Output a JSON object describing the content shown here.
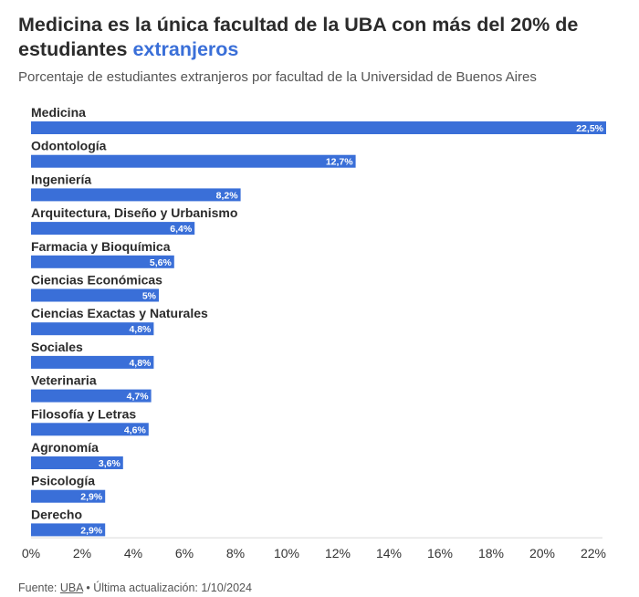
{
  "header": {
    "title_main": "Medicina es la única facultad de la UBA con más del 20% de estudiantes",
    "title_highlight": "extranjeros",
    "subtitle": "Porcentaje de estudiantes extranjeros por facultad de la Universidad de Buenos Aires"
  },
  "footer": {
    "source_label": "Fuente:",
    "source_link": "UBA",
    "separator": "•",
    "updated": "Última actualización: 1/10/2024"
  },
  "colors": {
    "bar": "#3a6fd8",
    "highlight": "#3a6fd8"
  },
  "chart_data": {
    "type": "bar",
    "orientation": "horizontal",
    "title": "Medicina es la única facultad de la UBA con más del 20% de estudiantes extranjeros",
    "subtitle": "Porcentaje de estudiantes extranjeros por facultad de la Universidad de Buenos Aires",
    "categories": [
      "Medicina",
      "Odontología",
      "Ingeniería",
      "Arquitectura, Diseño y Urbanismo",
      "Farmacia y Bioquímica",
      "Ciencias Económicas",
      "Ciencias Exactas y Naturales",
      "Sociales",
      "Veterinaria",
      "Filosofía y Letras",
      "Agronomía",
      "Psicología",
      "Derecho"
    ],
    "values": [
      22.5,
      12.7,
      8.2,
      6.4,
      5.6,
      5,
      4.8,
      4.8,
      4.7,
      4.6,
      3.6,
      2.9,
      2.9
    ],
    "value_labels": [
      "22,5%",
      "12,7%",
      "8,2%",
      "6,4%",
      "5,6%",
      "5%",
      "4,8%",
      "4,8%",
      "4,7%",
      "4,6%",
      "3,6%",
      "2,9%",
      "2,9%"
    ],
    "xlim": [
      0,
      22
    ],
    "xticks": [
      0,
      2,
      4,
      6,
      8,
      10,
      12,
      14,
      16,
      18,
      20,
      22
    ],
    "xtick_labels": [
      "0%",
      "2%",
      "4%",
      "6%",
      "8%",
      "10%",
      "12%",
      "14%",
      "16%",
      "18%",
      "20%",
      "22%"
    ],
    "xlabel": "",
    "ylabel": "",
    "grid": false,
    "legend": "none"
  }
}
